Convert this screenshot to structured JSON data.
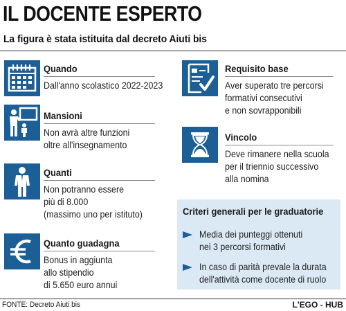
{
  "header": {
    "title": "IL DOCENTE ESPERTO",
    "subtitle": "La figura è stata istituita dal decreto Aiuti bis"
  },
  "sections": {
    "quando": {
      "title": "Quando",
      "lines": [
        "Dall'anno scolastico 2022-2023"
      ],
      "icon": "calendar-icon"
    },
    "mansioni": {
      "title": "Mansioni",
      "lines": [
        "Non avrà altre funzioni",
        "oltre all'insegnamento"
      ],
      "icon": "teacher-icon"
    },
    "quanti": {
      "title": "Quanti",
      "lines": [
        "Non potranno essere",
        "più di 8.000",
        "(massimo uno per istituto)"
      ],
      "icon": "person-icon"
    },
    "guadagna": {
      "title": "Quanto guadagna",
      "lines": [
        "Bonus in aggiunta",
        "allo stipendio",
        "di 5.650 euro annui"
      ],
      "icon": "euro-icon"
    },
    "requisito": {
      "title": "Requisito base",
      "lines": [
        "Aver superato tre percorsi",
        "formativi consecutivi",
        "e non sovrapponibili"
      ],
      "icon": "checklist-icon"
    },
    "vincolo": {
      "title": "Vincolo",
      "lines": [
        "Deve rimanere nella scuola",
        "per il triennio successivo",
        "alla nomina"
      ],
      "icon": "hourglass-icon"
    }
  },
  "criteria": {
    "title": "Criteri generali per le graduatorie",
    "items": [
      {
        "lines": [
          "Media dei punteggi ottenuti",
          "nei 3 percorsi formativi"
        ]
      },
      {
        "lines": [
          "In caso di parità prevale la durata",
          "dell'attività come docente di ruolo"
        ]
      }
    ]
  },
  "footer": {
    "source": "FONTE: Decreto Aiuti bis",
    "brand": "L'EGO - HUB"
  },
  "colors": {
    "icon_bg": "#1c5f96",
    "box_bg": "#dbe9f5"
  }
}
